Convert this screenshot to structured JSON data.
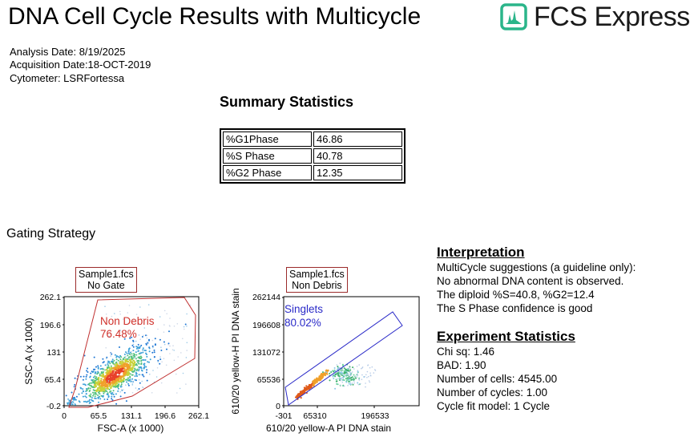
{
  "header": {
    "title": "DNA Cell Cycle Results with Multicycle",
    "logo_text": "FCS Express"
  },
  "meta": {
    "analysis_date": "Analysis Date: 8/19/2025",
    "acquisition_date": "Acquisition Date:18-OCT-2019",
    "cytometer": "Cytometer: LSRFortessa"
  },
  "summary": {
    "title": "Summary Statistics",
    "rows": [
      {
        "label": "%G1Phase",
        "value": "46.86"
      },
      {
        "label": "%S Phase",
        "value": "40.78"
      },
      {
        "label": "%G2 Phase",
        "value": "12.35"
      }
    ]
  },
  "gating": {
    "label": "Gating Strategy",
    "plot1": {
      "box_line1": "Sample1.fcs",
      "box_line2": "No Gate",
      "gate_name": "Non Debris",
      "gate_pct": "76.48%",
      "x_axis_label": "FSC-A (x 1000)",
      "y_axis_label": "SSC-A (x 1000)",
      "x_ticks": [
        "0",
        "65.5",
        "131.1",
        "196.6",
        "262.1"
      ],
      "y_ticks": [
        "-0.2",
        "65.4",
        "131",
        "196.6",
        "262.1"
      ]
    },
    "plot2": {
      "box_line1": "Sample1.fcs",
      "box_line2": "Non Debris",
      "gate_name": "Singlets",
      "gate_pct": "80.02%",
      "x_axis_label": "610/20 yellow-A PI DNA stain",
      "y_axis_label": "610/20 yellow-H PI DNA stain",
      "x_ticks": [
        "-301",
        "65310",
        "196533"
      ],
      "y_ticks": [
        "0",
        "65536",
        "131072",
        "196608",
        "262144"
      ]
    }
  },
  "interpretation": {
    "title": "Interpretation",
    "lines": [
      "MultiCycle suggestions (a guideline only):",
      "No abnormal DNA content is observed.",
      "The diploid %S=40.8, %G2=12.4",
      "The S Phase confidence is good"
    ]
  },
  "experiment": {
    "title": "Experiment Statistics",
    "lines": [
      "Chi sq: 1.46",
      "BAD: 1.90",
      "Number of cells: 4545.00",
      "Number of cycles: 1.00",
      "Cycle fit model: 1 Cycle"
    ]
  },
  "colors": {
    "logo_green": "#2bb58a",
    "gate_red": "#d0302a",
    "gate_blue": "#2a2ac8"
  }
}
